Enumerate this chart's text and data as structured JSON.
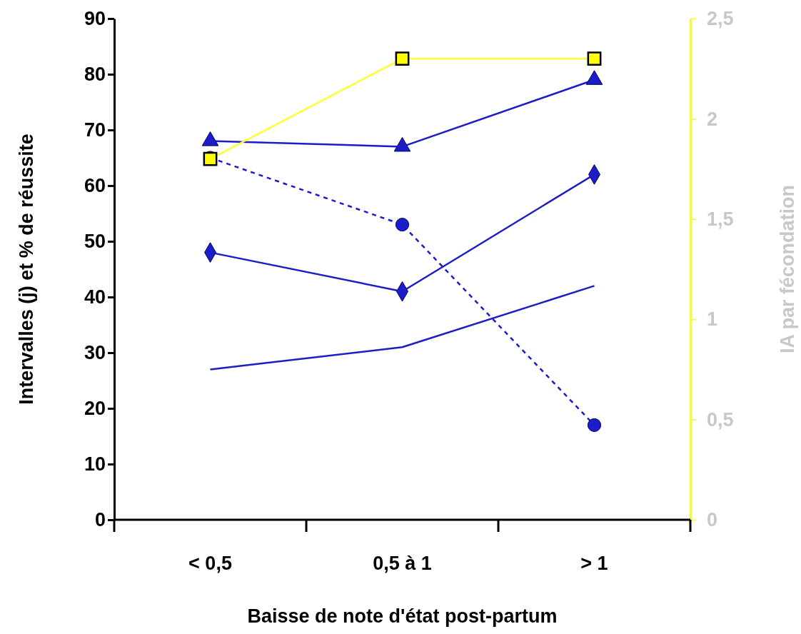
{
  "chart_data": {
    "type": "line",
    "xlabel": "Baisse de note d'état post-partum",
    "ylabel": "Intervalles (j) et % de réussite",
    "y2label": "IA par fécondation",
    "categories": [
      "< 0,5",
      "0,5 à 1",
      "> 1"
    ],
    "series": [
      {
        "color": "#1c1cc8",
        "marker": "triangle",
        "values": [
          68,
          67,
          79
        ]
      },
      {
        "color": "#1c1cc8",
        "marker": "circle",
        "line_style": "dashed",
        "values": [
          65,
          53,
          17
        ]
      },
      {
        "color": "#1c1cc8",
        "marker": "diamond",
        "values": [
          48,
          41,
          62
        ]
      },
      {
        "color": "#1c1cc8",
        "marker": "none",
        "values": [
          27,
          31,
          42
        ]
      },
      {
        "color": "#ffff33",
        "marker": "square",
        "axis": "y2",
        "values": [
          1.8,
          2.3,
          2.3
        ]
      }
    ],
    "ylim": [
      0,
      90
    ],
    "yticks": [
      0,
      10,
      20,
      30,
      40,
      50,
      60,
      70,
      80,
      90
    ],
    "y2lim": [
      0,
      2.5
    ],
    "y2ticks": [
      0,
      {
        "value": 0.5,
        "label": "0,5"
      },
      1,
      {
        "value": 1.5,
        "label": "1,5"
      },
      2,
      {
        "value": 2.5,
        "label": "2,5"
      }
    ],
    "grid": false
  }
}
